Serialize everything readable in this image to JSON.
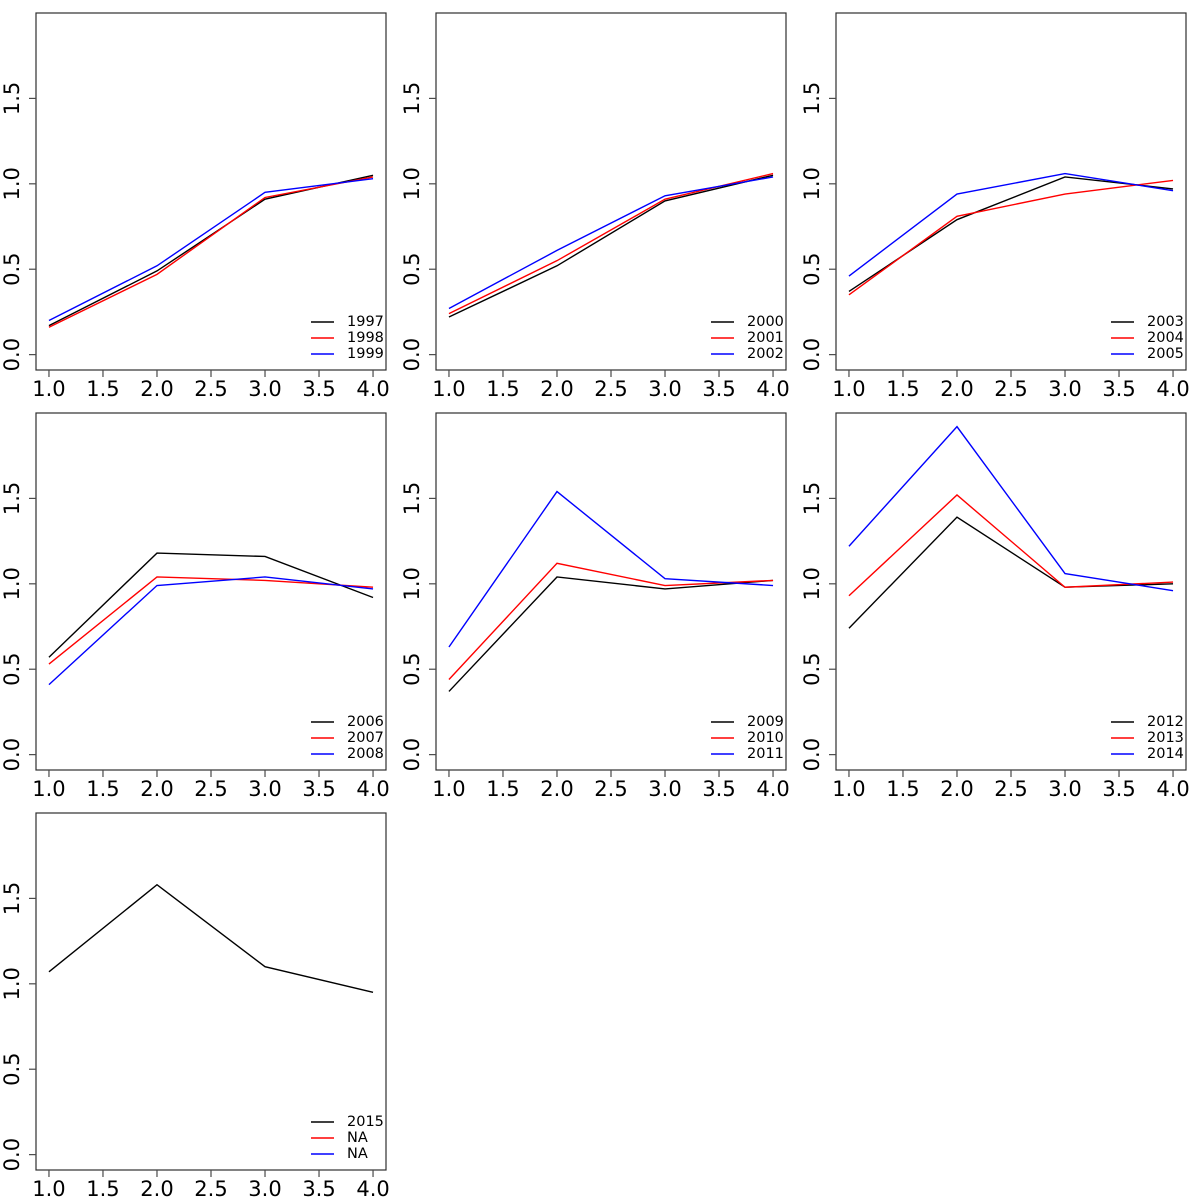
{
  "figure": {
    "description": "Grid of seven line charts, three per row, last row has one chart",
    "background": "#ffffff"
  },
  "colors": {
    "series": {
      "black": "#000000",
      "red": "#ff0000",
      "blue": "#0000ff"
    },
    "frame": "#2e2e2e",
    "tick": "#4a4a4a",
    "text": "#000000"
  },
  "chart_data": {
    "type": "line",
    "title": "",
    "xlabel": "",
    "ylabel": "",
    "shared": {
      "x": [
        1,
        2,
        3,
        4
      ],
      "x_ticks": [
        "1.0",
        "1.5",
        "2.0",
        "2.5",
        "3.0",
        "3.5",
        "4.0"
      ],
      "x_tick_values": [
        1.0,
        1.5,
        2.0,
        2.5,
        3.0,
        3.5,
        4.0
      ],
      "y_ticks": [
        "0.0",
        "0.5",
        "1.0",
        "1.5"
      ],
      "y_tick_values": [
        0.0,
        0.5,
        1.0,
        1.5
      ],
      "xlim": [
        0.88,
        4.12
      ],
      "ylim": [
        -0.09,
        2.0
      ],
      "grid": false,
      "legend_position": "bottom-right"
    },
    "panels": [
      {
        "grid": {
          "row": 0,
          "col": 0
        },
        "series": [
          {
            "name": "1997",
            "color": "black",
            "values": [
              0.17,
              0.49,
              0.91,
              1.05
            ]
          },
          {
            "name": "1998",
            "color": "red",
            "values": [
              0.16,
              0.47,
              0.92,
              1.04
            ]
          },
          {
            "name": "1999",
            "color": "blue",
            "values": [
              0.2,
              0.52,
              0.95,
              1.03
            ]
          }
        ]
      },
      {
        "grid": {
          "row": 0,
          "col": 1
        },
        "series": [
          {
            "name": "2000",
            "color": "black",
            "values": [
              0.22,
              0.52,
              0.9,
              1.05
            ]
          },
          {
            "name": "2001",
            "color": "red",
            "values": [
              0.24,
              0.55,
              0.91,
              1.06
            ]
          },
          {
            "name": "2002",
            "color": "blue",
            "values": [
              0.27,
              0.61,
              0.93,
              1.04
            ]
          }
        ]
      },
      {
        "grid": {
          "row": 0,
          "col": 2
        },
        "series": [
          {
            "name": "2003",
            "color": "black",
            "values": [
              0.37,
              0.79,
              1.04,
              0.97
            ]
          },
          {
            "name": "2004",
            "color": "red",
            "values": [
              0.35,
              0.81,
              0.94,
              1.02
            ]
          },
          {
            "name": "2005",
            "color": "blue",
            "values": [
              0.46,
              0.94,
              1.06,
              0.96
            ]
          }
        ]
      },
      {
        "grid": {
          "row": 1,
          "col": 0
        },
        "series": [
          {
            "name": "2006",
            "color": "black",
            "values": [
              0.57,
              1.18,
              1.16,
              0.92
            ]
          },
          {
            "name": "2007",
            "color": "red",
            "values": [
              0.53,
              1.04,
              1.02,
              0.98
            ]
          },
          {
            "name": "2008",
            "color": "blue",
            "values": [
              0.41,
              0.99,
              1.04,
              0.97
            ]
          }
        ]
      },
      {
        "grid": {
          "row": 1,
          "col": 1
        },
        "series": [
          {
            "name": "2009",
            "color": "black",
            "values": [
              0.37,
              1.04,
              0.97,
              1.02
            ]
          },
          {
            "name": "2010",
            "color": "red",
            "values": [
              0.44,
              1.12,
              0.99,
              1.02
            ]
          },
          {
            "name": "2011",
            "color": "blue",
            "values": [
              0.63,
              1.54,
              1.03,
              0.99
            ]
          }
        ]
      },
      {
        "grid": {
          "row": 1,
          "col": 2
        },
        "series": [
          {
            "name": "2012",
            "color": "black",
            "values": [
              0.74,
              1.39,
              0.98,
              1.0
            ]
          },
          {
            "name": "2013",
            "color": "red",
            "values": [
              0.93,
              1.52,
              0.98,
              1.01
            ]
          },
          {
            "name": "2014",
            "color": "blue",
            "values": [
              1.22,
              1.92,
              1.06,
              0.96
            ]
          }
        ]
      },
      {
        "grid": {
          "row": 2,
          "col": 0
        },
        "series": [
          {
            "name": "2015",
            "color": "black",
            "values": [
              1.07,
              1.58,
              1.1,
              0.95
            ]
          },
          {
            "name": "NA",
            "color": "red",
            "values": null
          },
          {
            "name": "NA",
            "color": "blue",
            "values": null
          }
        ]
      }
    ]
  }
}
